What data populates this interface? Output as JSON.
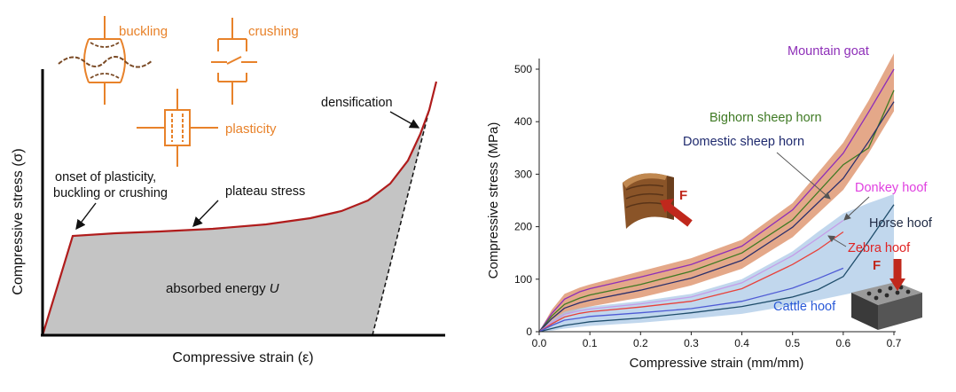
{
  "chart_data": [
    {
      "type": "area",
      "title": "",
      "xlabel": "Compressive strain (ε)",
      "ylabel": "Compressive stress (σ)",
      "annotations": {
        "onset_line1": "onset of plasticity,",
        "onset_line2": "buckling or crushing",
        "plateau": "plateau stress",
        "densification": "densification",
        "energy_prefix": "absorbed energy ",
        "energy_symbol": "U"
      },
      "mechanisms": {
        "buckling": "buckling",
        "crushing": "crushing",
        "plasticity": "plasticity"
      },
      "colors": {
        "curve": "#b01c1c",
        "fill": "#c4c4c4",
        "mechanism": "#e8822a"
      }
    },
    {
      "type": "line",
      "title": "",
      "xlabel": "Compressive strain (mm/mm)",
      "ylabel": "Compressive stress (MPa)",
      "xlim": [
        0,
        0.7
      ],
      "ylim": [
        0,
        500
      ],
      "xticks": [
        "0.0",
        "0.1",
        "0.2",
        "0.3",
        "0.4",
        "0.5",
        "0.6",
        "0.7"
      ],
      "yticks": [
        "0",
        "100",
        "200",
        "300",
        "400",
        "500"
      ],
      "series": [
        {
          "name": "Mountain goat",
          "color": "#8e2fb8",
          "label_color": "#8e2fb8",
          "x": [
            0,
            0.025,
            0.05,
            0.08,
            0.1,
            0.2,
            0.3,
            0.4,
            0.5,
            0.6,
            0.65,
            0.7
          ],
          "y": [
            0,
            35,
            62,
            76,
            82,
            104,
            128,
            163,
            232,
            340,
            418,
            500
          ]
        },
        {
          "name": "Bighorn sheep horn",
          "color": "#3f7a24",
          "label_color": "#3f7a24",
          "x": [
            0,
            0.025,
            0.05,
            0.08,
            0.1,
            0.2,
            0.3,
            0.4,
            0.5,
            0.6,
            0.65,
            0.7
          ],
          "y": [
            0,
            30,
            52,
            64,
            70,
            90,
            115,
            150,
            213,
            318,
            350,
            460
          ]
        },
        {
          "name": "Domestic sheep horn",
          "color": "#2b2f6b",
          "label_color": "#1f2a6e",
          "x": [
            0,
            0.025,
            0.05,
            0.08,
            0.1,
            0.2,
            0.3,
            0.4,
            0.5,
            0.6,
            0.65,
            0.7
          ],
          "y": [
            0,
            25,
            45,
            55,
            60,
            79,
            102,
            136,
            199,
            292,
            362,
            438
          ]
        },
        {
          "name": "Donkey hoof",
          "color": "#c59ce8",
          "label_color": "#e040e0",
          "x": [
            0,
            0.025,
            0.05,
            0.08,
            0.1,
            0.2,
            0.3,
            0.4,
            0.5,
            0.55,
            0.6
          ],
          "y": [
            0,
            18,
            33,
            40,
            43,
            53,
            66,
            93,
            145,
            178,
            212
          ]
        },
        {
          "name": "Zebra hoof",
          "color": "#e8413a",
          "label_color": "#e02424",
          "x": [
            0,
            0.025,
            0.05,
            0.08,
            0.1,
            0.2,
            0.3,
            0.4,
            0.5,
            0.55,
            0.6
          ],
          "y": [
            0,
            15,
            28,
            35,
            38,
            47,
            58,
            82,
            128,
            156,
            190
          ]
        },
        {
          "name": "Horse hoof",
          "color": "#1f4d6b",
          "label_color": "#1f2a44",
          "x": [
            0,
            0.025,
            0.05,
            0.08,
            0.1,
            0.2,
            0.3,
            0.4,
            0.5,
            0.55,
            0.6,
            0.65,
            0.7
          ],
          "y": [
            0,
            6,
            12,
            16,
            19,
            26,
            36,
            48,
            66,
            80,
            105,
            172,
            242
          ]
        },
        {
          "name": "Cattle hoof",
          "color": "#4f5bd5",
          "label_color": "#2a5ad8",
          "x": [
            0,
            0.025,
            0.05,
            0.08,
            0.1,
            0.2,
            0.3,
            0.4,
            0.5,
            0.55,
            0.6
          ],
          "y": [
            0,
            12,
            22,
            26,
            29,
            36,
            44,
            58,
            83,
            101,
            121
          ]
        }
      ],
      "bands": [
        {
          "name": "horn band",
          "color": "#d9875b",
          "x": [
            0,
            0.025,
            0.05,
            0.08,
            0.1,
            0.2,
            0.3,
            0.4,
            0.5,
            0.6,
            0.65,
            0.7
          ],
          "lower": [
            0,
            10,
            32,
            43,
            48,
            65,
            88,
            120,
            180,
            270,
            340,
            420
          ],
          "upper": [
            0,
            42,
            72,
            84,
            90,
            115,
            140,
            175,
            245,
            360,
            440,
            530
          ]
        },
        {
          "name": "hoof band",
          "color": "#a9c8e6",
          "x": [
            0,
            0.025,
            0.05,
            0.08,
            0.1,
            0.2,
            0.3,
            0.4,
            0.5,
            0.55,
            0.6,
            0.65,
            0.7
          ],
          "lower": [
            0,
            2,
            6,
            9,
            11,
            17,
            25,
            34,
            50,
            60,
            70,
            80,
            90
          ],
          "upper": [
            0,
            22,
            38,
            45,
            48,
            58,
            72,
            100,
            153,
            190,
            225,
            245,
            262
          ]
        }
      ],
      "insets": {
        "force_label": "F"
      }
    }
  ]
}
